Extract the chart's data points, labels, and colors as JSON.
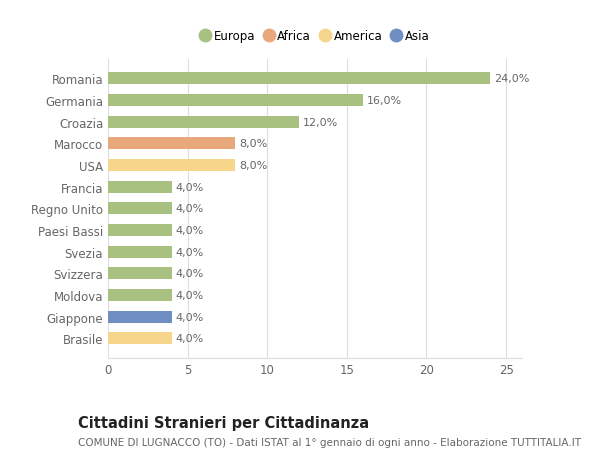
{
  "categories": [
    "Brasile",
    "Giappone",
    "Moldova",
    "Svizzera",
    "Svezia",
    "Paesi Bassi",
    "Regno Unito",
    "Francia",
    "USA",
    "Marocco",
    "Croazia",
    "Germania",
    "Romania"
  ],
  "values": [
    4.0,
    4.0,
    4.0,
    4.0,
    4.0,
    4.0,
    4.0,
    4.0,
    8.0,
    8.0,
    12.0,
    16.0,
    24.0
  ],
  "colors": [
    "#f5d68a",
    "#6e8ec4",
    "#a8c181",
    "#a8c181",
    "#a8c181",
    "#a8c181",
    "#a8c181",
    "#a8c181",
    "#f5d68a",
    "#e8a87c",
    "#a8c181",
    "#a8c181",
    "#a8c181"
  ],
  "labels": [
    "4,0%",
    "4,0%",
    "4,0%",
    "4,0%",
    "4,0%",
    "4,0%",
    "4,0%",
    "4,0%",
    "8,0%",
    "8,0%",
    "12,0%",
    "16,0%",
    "24,0%"
  ],
  "legend": {
    "Europa": "#a8c181",
    "Africa": "#e8a87c",
    "America": "#f5d68a",
    "Asia": "#6e8ec4"
  },
  "title": "Cittadini Stranieri per Cittadinanza",
  "subtitle": "COMUNE DI LUGNACCO (TO) - Dati ISTAT al 1° gennaio di ogni anno - Elaborazione TUTTITALIA.IT",
  "xlim": [
    0,
    26
  ],
  "xticks": [
    0,
    5,
    10,
    15,
    20,
    25
  ],
  "background_color": "#ffffff",
  "grid_color": "#dddddd",
  "bar_height": 0.55,
  "label_fontsize": 8.0,
  "tick_fontsize": 8.5,
  "title_fontsize": 10.5,
  "subtitle_fontsize": 7.5
}
